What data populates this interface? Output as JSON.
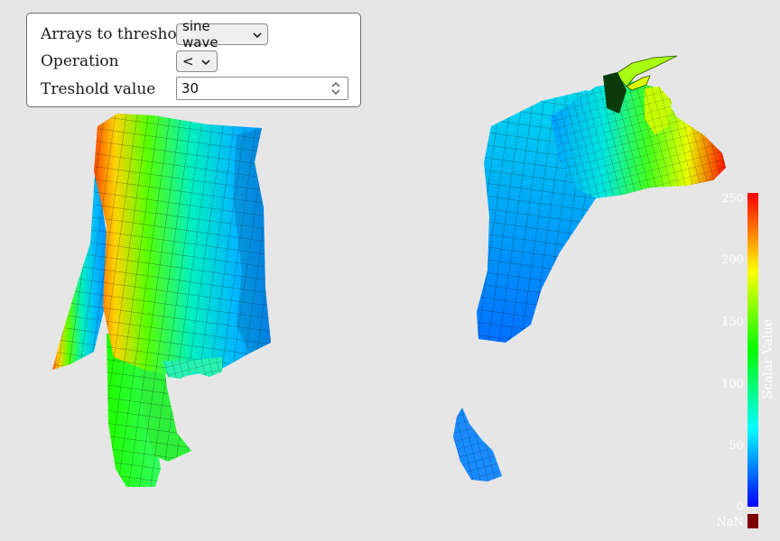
{
  "controls": {
    "array_label": "Arrays to threshold",
    "array_value": "sine wave",
    "operation_label": "Operation",
    "operation_value": "<",
    "threshold_label": "Treshold value",
    "threshold_value": "30"
  },
  "colorbar": {
    "title": "Scalar Value",
    "ticks": [
      "250",
      "200",
      "150",
      "100",
      "50",
      "0"
    ],
    "nan_label": "NaN",
    "nan_color": "#7f0000"
  },
  "colors": {
    "background": "#e6e6e6",
    "red": "#ff1a00",
    "yellow": "#ffff00",
    "green": "#00ff00",
    "cyan": "#00ffff",
    "blue": "#0000ff"
  }
}
